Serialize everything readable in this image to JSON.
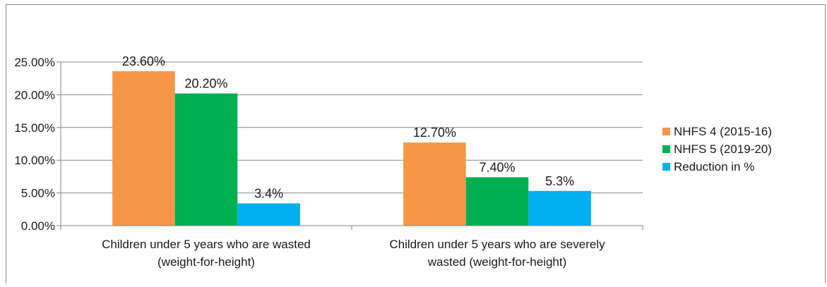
{
  "chart_data": {
    "type": "bar",
    "categories": [
      [
        "Children under 5 years who are wasted",
        "(weight-for-height)"
      ],
      [
        "Children under 5 years who are severely",
        "wasted (weight-for-height)"
      ]
    ],
    "series": [
      {
        "name": "NHFS 4 (2015-16)",
        "color": "#F79646",
        "values": [
          23.6,
          12.7
        ],
        "labels": [
          "23.60%",
          "12.70%"
        ]
      },
      {
        "name": "NHFS 5 (2019-20)",
        "color": "#00B050",
        "values": [
          20.2,
          7.4
        ],
        "labels": [
          "20.20%",
          "7.40%"
        ]
      },
      {
        "name": "Reduction in %",
        "color": "#00B0F0",
        "values": [
          3.4,
          5.3
        ],
        "labels": [
          "3.4%",
          "5.3%"
        ]
      }
    ],
    "ylim": [
      0,
      25
    ],
    "yticks": [
      0,
      5,
      10,
      15,
      20,
      25
    ],
    "ytick_labels": [
      "0.00%",
      "5.00%",
      "10.00%",
      "15.00%",
      "20.00%",
      "25.00%"
    ],
    "grid": true,
    "legend_position": "right"
  }
}
